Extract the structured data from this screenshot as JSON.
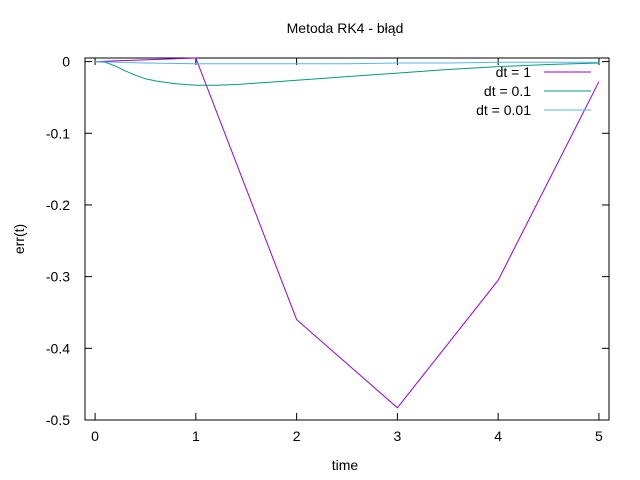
{
  "chart_data": {
    "type": "line",
    "title": "Metoda RK4 - błąd",
    "xlabel": "time",
    "ylabel": "err(t)",
    "xlim": [
      -0.1,
      5.1
    ],
    "ylim": [
      -0.5,
      0.005
    ],
    "x_ticks": [
      0,
      1,
      2,
      3,
      4,
      5
    ],
    "y_ticks": [
      0,
      -0.1,
      -0.2,
      -0.3,
      -0.4,
      -0.5
    ],
    "x_tick_labels": [
      "0",
      "1",
      "2",
      "3",
      "4",
      "5"
    ],
    "y_tick_labels": [
      "0",
      "-0.1",
      "-0.2",
      "-0.3",
      "-0.4",
      "-0.5"
    ],
    "grid": false,
    "legend_position": "top-right",
    "series": [
      {
        "name": "dt = 1",
        "color": "#9400d3",
        "x": [
          0,
          1,
          2,
          3,
          4,
          5
        ],
        "y": [
          0,
          0.005,
          -0.36,
          -0.483,
          -0.305,
          -0.028
        ]
      },
      {
        "name": "dt = 0.1",
        "color": "#009e73",
        "x": [
          0,
          0.1,
          0.2,
          0.3,
          0.4,
          0.5,
          0.6,
          0.7,
          0.8,
          0.9,
          1.0,
          1.2,
          1.4,
          1.6,
          1.8,
          2.0,
          2.5,
          3.0,
          3.5,
          4.0,
          4.5,
          5.0
        ],
        "y": [
          0,
          -0.001,
          -0.006,
          -0.013,
          -0.019,
          -0.024,
          -0.027,
          -0.029,
          -0.031,
          -0.032,
          -0.033,
          -0.033,
          -0.032,
          -0.03,
          -0.028,
          -0.026,
          -0.021,
          -0.016,
          -0.011,
          -0.007,
          -0.004,
          -0.002
        ]
      },
      {
        "name": "dt = 0.01",
        "color": "#56b4e9",
        "x": [
          0,
          0.5,
          1.0,
          1.5,
          2.0,
          2.5,
          3.0,
          3.5,
          4.0,
          4.5,
          5.0
        ],
        "y": [
          0,
          -0.002,
          -0.003,
          -0.003,
          -0.003,
          -0.003,
          -0.002,
          -0.002,
          -0.001,
          -0.001,
          -0.001
        ]
      }
    ]
  }
}
